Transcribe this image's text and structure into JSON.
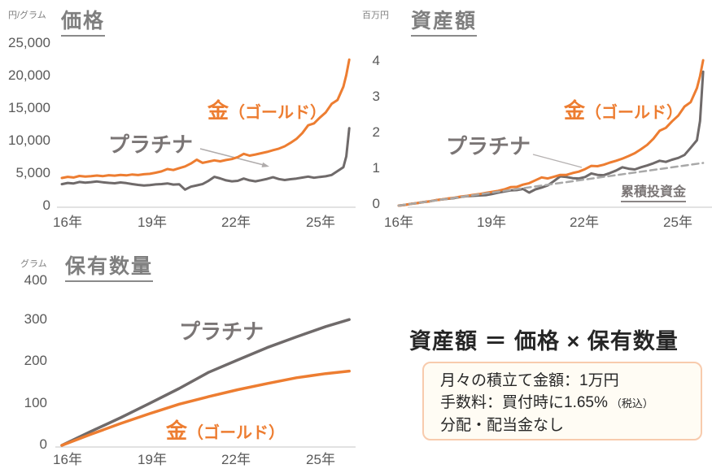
{
  "colors": {
    "gold": "#ED7D31",
    "platinum": "#6F6A6A",
    "cumulative": "#A8A8A8",
    "axis": "#D9D9D9",
    "tick": "#595959",
    "title": "#7F7F7F",
    "text": "#262626",
    "box_border": "#F8CBAD",
    "box_bg": "#FFFCF4"
  },
  "formula": "資産額 ＝ 価格 × 保有数量",
  "info_box": {
    "lines": [
      "月々の積立て金額：1万円",
      "手数料：買付時に1.65%",
      "分配・配当金なし"
    ],
    "line2_suffix": "（税込）"
  },
  "chart_data": [
    {
      "id": "price",
      "type": "line",
      "title": "価格",
      "unit": "円/グラム",
      "ylim": [
        0,
        25000
      ],
      "x_range": [
        2016,
        2025.85
      ],
      "grid": false,
      "y_tick_labels": [
        "25,000",
        "20,000",
        "15,000",
        "10,000",
        "5,000",
        "0"
      ],
      "x_tick_labels": [
        "16年",
        "19年",
        "22年",
        "25年"
      ],
      "labels": {
        "gold_main": "金",
        "gold_sub": "（ゴールド）",
        "platinum": "プラチナ"
      },
      "series": [
        {
          "name": "プラチナ",
          "color_key": "platinum",
          "dashed": false,
          "x": [
            2016,
            2016.2,
            2016.4,
            2016.6,
            2016.8,
            2017,
            2017.2,
            2017.4,
            2017.6,
            2017.8,
            2018,
            2018.2,
            2018.4,
            2018.6,
            2018.8,
            2019,
            2019.2,
            2019.4,
            2019.6,
            2019.8,
            2020,
            2020.2,
            2020.4,
            2020.6,
            2020.8,
            2021,
            2021.2,
            2021.4,
            2021.6,
            2021.8,
            2022,
            2022.2,
            2022.4,
            2022.6,
            2022.8,
            2023,
            2023.2,
            2023.4,
            2023.6,
            2023.8,
            2024,
            2024.2,
            2024.4,
            2024.6,
            2024.8,
            2025,
            2025.2,
            2025.4,
            2025.6,
            2025.7,
            2025.8
          ],
          "y": [
            3300,
            3490,
            3410,
            3640,
            3540,
            3610,
            3710,
            3590,
            3500,
            3440,
            3560,
            3460,
            3310,
            3190,
            3090,
            3160,
            3260,
            3310,
            3410,
            3240,
            3290,
            2460,
            2910,
            3110,
            3320,
            3810,
            4420,
            4190,
            3890,
            3740,
            3810,
            4160,
            3890,
            3740,
            3910,
            4110,
            4360,
            4090,
            3940,
            4060,
            4160,
            4310,
            4460,
            4290,
            4410,
            4510,
            4710,
            5310,
            5910,
            7600,
            11900
          ]
        },
        {
          "name": "金（ゴールド）",
          "color_key": "gold",
          "dashed": false,
          "x": [
            2016,
            2016.2,
            2016.4,
            2016.6,
            2016.8,
            2017,
            2017.2,
            2017.4,
            2017.6,
            2017.8,
            2018,
            2018.2,
            2018.4,
            2018.6,
            2018.8,
            2019,
            2019.2,
            2019.4,
            2019.6,
            2019.8,
            2020,
            2020.2,
            2020.4,
            2020.6,
            2020.8,
            2021,
            2021.2,
            2021.4,
            2021.6,
            2021.8,
            2022,
            2022.2,
            2022.4,
            2022.6,
            2022.8,
            2023,
            2023.2,
            2023.4,
            2023.6,
            2023.8,
            2024,
            2024.2,
            2024.4,
            2024.6,
            2024.8,
            2025,
            2025.2,
            2025.4,
            2025.6,
            2025.7,
            2025.8
          ],
          "y": [
            4250,
            4420,
            4330,
            4560,
            4480,
            4530,
            4620,
            4540,
            4670,
            4610,
            4720,
            4650,
            4790,
            4700,
            4830,
            4890,
            5060,
            5260,
            5620,
            5470,
            5760,
            6020,
            6480,
            7060,
            6580,
            6760,
            6960,
            6810,
            7010,
            7160,
            7460,
            7960,
            7690,
            7860,
            8060,
            8260,
            8520,
            8760,
            9120,
            9660,
            10260,
            11150,
            12350,
            12650,
            13550,
            14350,
            15650,
            16250,
            18300,
            20100,
            22450
          ]
        }
      ]
    },
    {
      "id": "asset",
      "type": "line",
      "title": "資産額",
      "unit": "百万円",
      "ylim": [
        0,
        4
      ],
      "x_range": [
        2016,
        2025.85
      ],
      "grid": false,
      "y_tick_labels": [
        "4",
        "3",
        "2",
        "1",
        "0"
      ],
      "x_tick_labels": [
        "16年",
        "19年",
        "22年",
        "25年"
      ],
      "labels": {
        "gold_main": "金",
        "gold_sub": "（ゴールド）",
        "platinum": "プラチナ",
        "cumulative": "累積投資金"
      },
      "series": [
        {
          "name": "プラチナ",
          "color_key": "platinum",
          "dashed": false,
          "x": [
            2016,
            2016.2,
            2016.4,
            2016.6,
            2016.8,
            2017,
            2017.2,
            2017.4,
            2017.6,
            2017.8,
            2018,
            2018.2,
            2018.4,
            2018.6,
            2018.8,
            2019,
            2019.2,
            2019.4,
            2019.6,
            2019.8,
            2020,
            2020.2,
            2020.4,
            2020.6,
            2020.8,
            2021,
            2021.2,
            2021.4,
            2021.6,
            2021.8,
            2022,
            2022.2,
            2022.4,
            2022.6,
            2022.8,
            2023,
            2023.2,
            2023.4,
            2023.6,
            2023.8,
            2024,
            2024.2,
            2024.4,
            2024.6,
            2024.8,
            2025,
            2025.2,
            2025.4,
            2025.6,
            2025.7,
            2025.8
          ],
          "y": [
            0,
            0.02,
            0.05,
            0.07,
            0.1,
            0.12,
            0.15,
            0.17,
            0.19,
            0.21,
            0.24,
            0.26,
            0.27,
            0.28,
            0.29,
            0.32,
            0.36,
            0.39,
            0.42,
            0.43,
            0.46,
            0.36,
            0.45,
            0.5,
            0.56,
            0.68,
            0.81,
            0.79,
            0.76,
            0.75,
            0.79,
            0.89,
            0.85,
            0.84,
            0.9,
            0.97,
            1.06,
            1.02,
            1.0,
            1.06,
            1.11,
            1.17,
            1.24,
            1.21,
            1.27,
            1.32,
            1.4,
            1.6,
            1.81,
            2.34,
            3.7
          ]
        },
        {
          "name": "金（ゴールド）",
          "color_key": "gold",
          "dashed": false,
          "x": [
            2016,
            2016.2,
            2016.4,
            2016.6,
            2016.8,
            2017,
            2017.2,
            2017.4,
            2017.6,
            2017.8,
            2018,
            2018.2,
            2018.4,
            2018.6,
            2018.8,
            2019,
            2019.2,
            2019.4,
            2019.6,
            2019.8,
            2020,
            2020.2,
            2020.4,
            2020.6,
            2020.8,
            2021,
            2021.2,
            2021.4,
            2021.6,
            2021.8,
            2022,
            2022.2,
            2022.4,
            2022.6,
            2022.8,
            2023,
            2023.2,
            2023.4,
            2023.6,
            2023.8,
            2024,
            2024.2,
            2024.4,
            2024.6,
            2024.8,
            2025,
            2025.2,
            2025.4,
            2025.6,
            2025.7,
            2025.8
          ],
          "y": [
            0,
            0.02,
            0.05,
            0.07,
            0.1,
            0.12,
            0.15,
            0.17,
            0.2,
            0.22,
            0.25,
            0.27,
            0.3,
            0.32,
            0.35,
            0.38,
            0.41,
            0.45,
            0.51,
            0.52,
            0.58,
            0.62,
            0.7,
            0.78,
            0.75,
            0.8,
            0.85,
            0.85,
            0.9,
            0.94,
            1.01,
            1.1,
            1.09,
            1.13,
            1.19,
            1.24,
            1.3,
            1.37,
            1.45,
            1.56,
            1.68,
            1.85,
            2.07,
            2.15,
            2.33,
            2.49,
            2.74,
            2.86,
            3.25,
            3.58,
            4.02
          ]
        },
        {
          "name": "累積投資金",
          "color_key": "cumulative",
          "dashed": true,
          "x": [
            2016,
            2025.8
          ],
          "y": [
            0,
            1.18
          ]
        }
      ]
    },
    {
      "id": "holdings",
      "type": "line",
      "title": "保有数量",
      "unit": "グラム",
      "ylim": [
        0,
        400
      ],
      "x_range": [
        2016,
        2025.85
      ],
      "grid": false,
      "y_tick_labels": [
        "400",
        "300",
        "200",
        "100",
        "0"
      ],
      "x_tick_labels": [
        "16年",
        "19年",
        "22年",
        "25年"
      ],
      "labels": {
        "gold_main": "金",
        "gold_sub": "（ゴールド）",
        "platinum": "プラチナ"
      },
      "series": [
        {
          "name": "プラチナ",
          "color_key": "platinum",
          "dashed": false,
          "x": [
            2016,
            2017,
            2018,
            2019,
            2020,
            2021,
            2022,
            2023,
            2024,
            2025,
            2025.8
          ],
          "y": [
            0,
            34,
            67,
            102,
            138,
            177,
            207,
            237,
            263,
            288,
            305
          ]
        },
        {
          "name": "金（ゴールド）",
          "color_key": "gold",
          "dashed": false,
          "x": [
            2016,
            2017,
            2018,
            2019,
            2020,
            2021,
            2022,
            2023,
            2024,
            2025,
            2025.8
          ],
          "y": [
            0,
            27,
            53,
            77,
            100,
            118,
            135,
            150,
            164,
            174,
            180
          ]
        }
      ]
    }
  ]
}
